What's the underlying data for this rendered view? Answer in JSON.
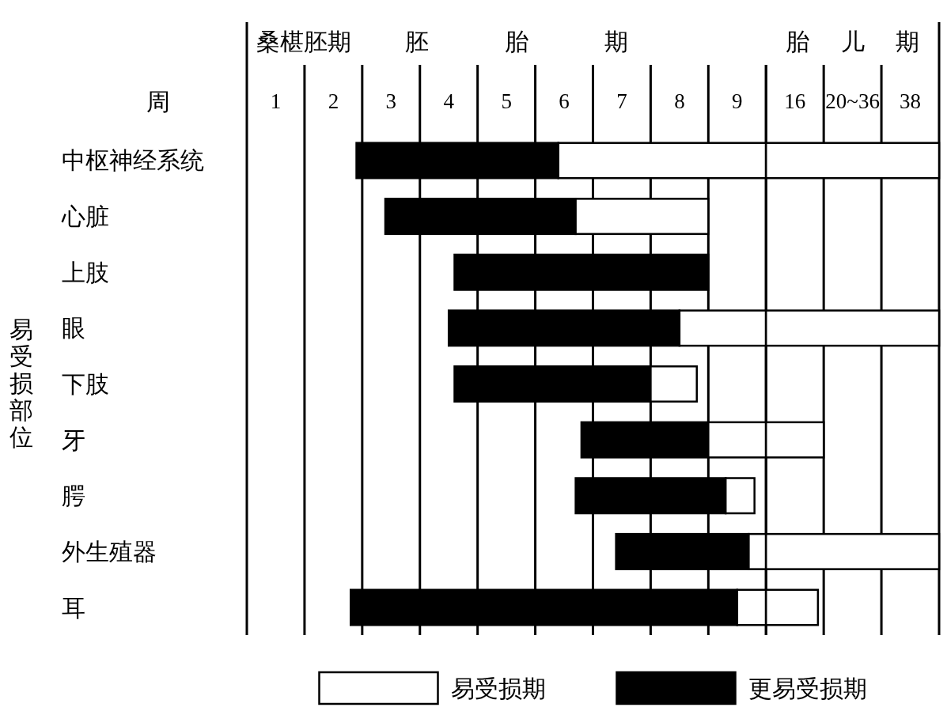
{
  "chart_data": [
    {
      "type": "bar",
      "orientation": "horizontal",
      "xlabel": "周",
      "ylabel": "易受损部位",
      "categories": [
        "中枢神经系统",
        "心脏",
        "上肢",
        "眼",
        "下肢",
        "牙",
        "腭",
        "外生殖器",
        "耳"
      ],
      "series": [
        {
          "name": "更易受损期",
          "color": "#000000",
          "base": [
            2.4,
            2.9,
            4.1,
            4.0,
            4.1,
            6.3,
            6.2,
            6.9,
            2.3
          ],
          "values": [
            3.5,
            3.3,
            4.4,
            4.0,
            3.4,
            2.2,
            2.6,
            2.3,
            6.7
          ]
        },
        {
          "name": "易受损期",
          "color": "#ffffff",
          "base": [
            5.9,
            6.2,
            null,
            8.0,
            7.5,
            8.5,
            8.8,
            9.2,
            9.0
          ],
          "values": [
            3.6,
            2.3,
            null,
            1.5,
            0.8,
            1.0,
            0.5,
            0.3,
            0.5
          ]
        }
      ],
      "xlim": [
        0.5,
        9.5
      ],
      "xticks": [
        {
          "value": 0.5,
          "label": null
        },
        1,
        {
          "value": 1.5,
          "label": null
        },
        2,
        {
          "value": 2.5,
          "label": null
        },
        3,
        {
          "value": 3.5,
          "label": null
        },
        4,
        {
          "value": 4.5,
          "label": null
        },
        5,
        {
          "value": 5.5,
          "label": null
        },
        6,
        {
          "value": 6.5,
          "label": null
        },
        7,
        {
          "value": 7.5,
          "label": null
        },
        8,
        {
          "value": 8.5,
          "label": null
        },
        9,
        {
          "value": 9.5,
          "label": null
        }
      ],
      "annotations": [
        "桑椹胚期",
        "胚胎期"
      ],
      "grid": "x",
      "legend": "bottom"
    },
    {
      "type": "bar",
      "orientation": "horizontal",
      "title": "胎儿期",
      "categories": [
        null,
        null,
        null,
        null,
        null,
        null,
        null,
        null,
        null
      ],
      "series": [
        {
          "color": "#ffffff",
          "base": [
            10.5,
            null,
            null,
            10.5,
            null,
            10.5,
            null,
            10.5,
            10.5
          ],
          "values": [
            33,
            null,
            null,
            33,
            null,
            11,
            null,
            33,
            9.9
          ]
        }
      ],
      "xlim": [
        10.5,
        43.5
      ],
      "xticks": [
        {
          "value": 10.5,
          "label": null
        },
        16,
        {
          "value": 21.5,
          "label": null
        },
        {
          "value": 27,
          "label": "20~36"
        },
        {
          "value": 32.5,
          "label": null
        },
        38,
        {
          "value": 43.5,
          "label": null
        }
      ],
      "grid": "x"
    }
  ]
}
